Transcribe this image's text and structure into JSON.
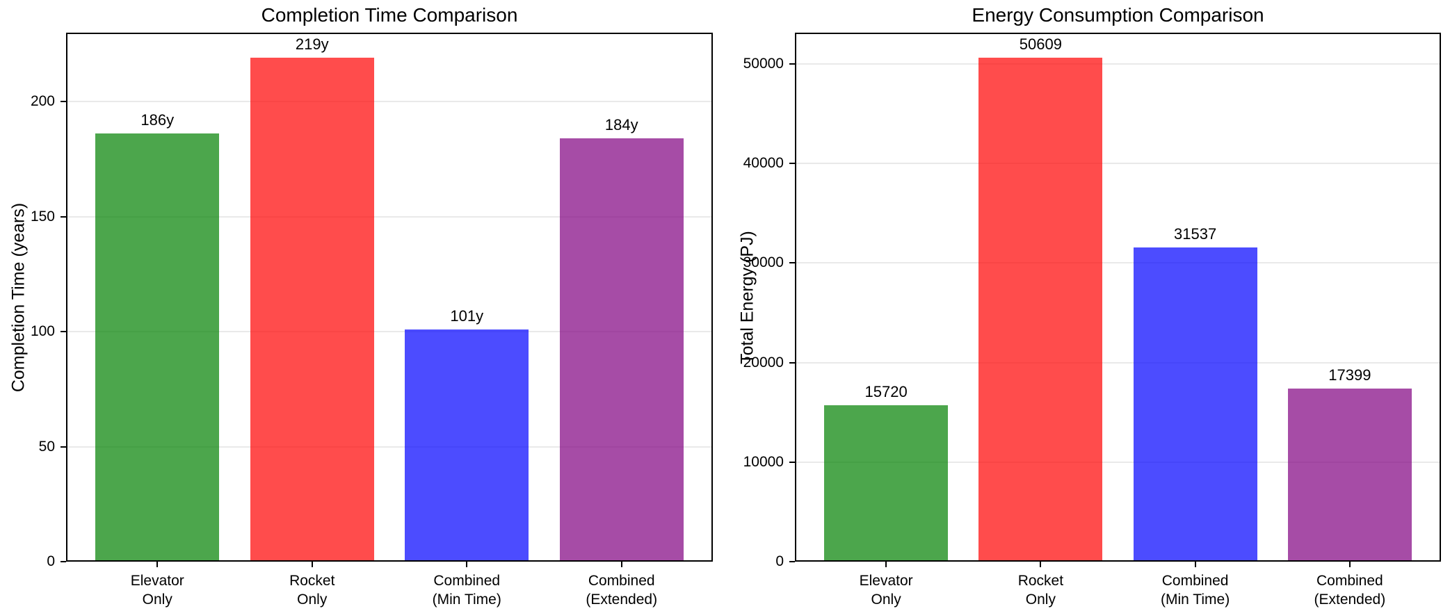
{
  "figure": {
    "background_color": "#ffffff",
    "text_color": "#000000",
    "grid_color": "#e9e9e9",
    "spine_color": "#000000"
  },
  "chart_data": [
    {
      "type": "bar",
      "title": "Completion Time Comparison",
      "xlabel": "",
      "ylabel": "Completion Time (years)",
      "categories": [
        "Elevator\nOnly",
        "Rocket\nOnly",
        "Combined\n(Min Time)",
        "Combined\n(Extended)"
      ],
      "values": [
        186,
        219,
        101,
        184
      ],
      "bar_labels": [
        "186y",
        "219y",
        "101y",
        "184y"
      ],
      "bar_colors": [
        "#008000",
        "#ff0000",
        "#0000ff",
        "#800080"
      ],
      "bar_alpha": 0.7,
      "yticks": [
        0,
        50,
        100,
        150,
        200
      ],
      "ylim": [
        0,
        229.95
      ],
      "grid": true,
      "legend": "none"
    },
    {
      "type": "bar",
      "title": "Energy Consumption Comparison",
      "xlabel": "",
      "ylabel": "Total Energy (PJ)",
      "categories": [
        "Elevator\nOnly",
        "Rocket\nOnly",
        "Combined\n(Min Time)",
        "Combined\n(Extended)"
      ],
      "values": [
        15720,
        50609,
        31537,
        17399
      ],
      "bar_labels": [
        "15720",
        "50609",
        "31537",
        "17399"
      ],
      "bar_colors": [
        "#008000",
        "#ff0000",
        "#0000ff",
        "#800080"
      ],
      "bar_alpha": 0.7,
      "yticks": [
        0,
        10000,
        20000,
        30000,
        40000,
        50000
      ],
      "ylim": [
        0,
        53139.45
      ],
      "grid": true,
      "legend": "none"
    }
  ]
}
